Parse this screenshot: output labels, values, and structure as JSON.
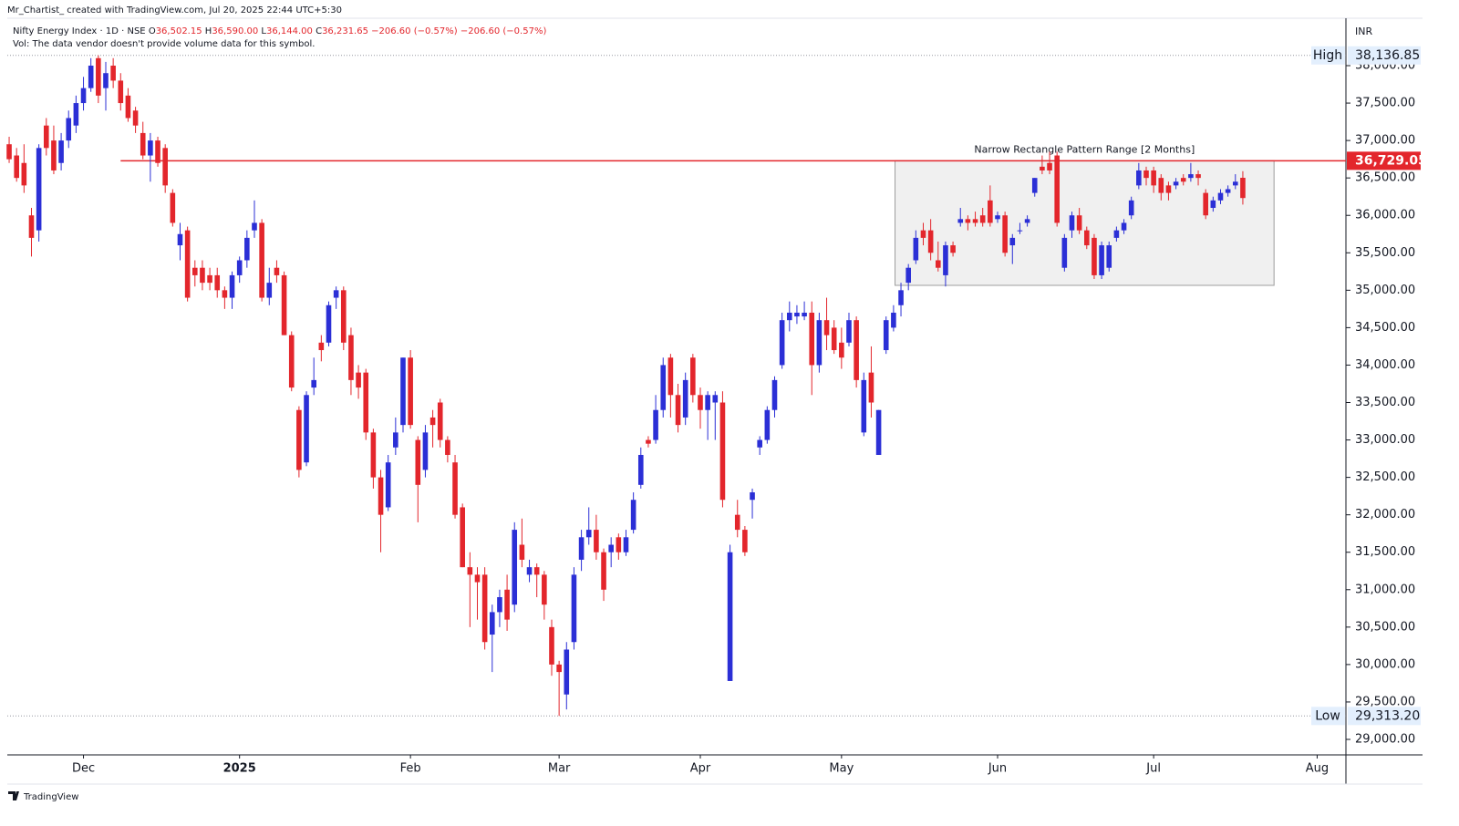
{
  "header": {
    "credit": "Mr_Chartist_ created with TradingView.com, Jul 20, 2025 22:44 UTC+5:30",
    "symbol": "Nifty Energy Index · 1D · NSE",
    "quote": [
      "O",
      "36,502.15",
      "H",
      "36,590.00",
      "L",
      "36,144.00",
      "C",
      "36,231.65",
      "−206.60 (−0.57%)",
      "−206.60 (−0.57%)"
    ],
    "volume_note": "Vol: The data vendor doesn't provide volume data for this symbol."
  },
  "footer": {
    "brand": "TradingView"
  },
  "chart_data": {
    "type": "candlestick",
    "currency": "INR",
    "up_color": "#2b2fd6",
    "down_color": "#e3262c",
    "xlim": [
      -0.25,
      179.75
    ],
    "xticks": [
      {
        "value": 10,
        "label": "Dec"
      },
      {
        "value": 31,
        "label": "2025"
      },
      {
        "value": 54,
        "label": "Feb"
      },
      {
        "value": 74,
        "label": "Mar"
      },
      {
        "value": 93,
        "label": "Apr"
      },
      {
        "value": 112,
        "label": "May"
      },
      {
        "value": 133,
        "label": "Jun"
      },
      {
        "value": 154,
        "label": "Jul"
      },
      {
        "value": 176,
        "label": "Aug"
      }
    ],
    "ylim": [
      28793,
      38268
    ],
    "yticks": [
      {
        "value": 29000,
        "label": "29,000.00"
      },
      {
        "value": 29500,
        "label": "29,500.00"
      },
      {
        "value": 30000,
        "label": "30,000.00"
      },
      {
        "value": 30500,
        "label": "30,500.00"
      },
      {
        "value": 31000,
        "label": "31,000.00"
      },
      {
        "value": 31500,
        "label": "31,500.00"
      },
      {
        "value": 32000,
        "label": "32,000.00"
      },
      {
        "value": 32500,
        "label": "32,500.00"
      },
      {
        "value": 33000,
        "label": "33,000.00"
      },
      {
        "value": 33500,
        "label": "33,500.00"
      },
      {
        "value": 34000,
        "label": "34,000.00"
      },
      {
        "value": 34500,
        "label": "34,500.00"
      },
      {
        "value": 35000,
        "label": "35,000.00"
      },
      {
        "value": 35500,
        "label": "35,500.00"
      },
      {
        "value": 36000,
        "label": "36,000.00"
      },
      {
        "value": 36500,
        "label": "36,500.00"
      },
      {
        "value": 37000,
        "label": "37,000.00"
      },
      {
        "value": 37500,
        "label": "37,500.00"
      },
      {
        "value": 38000,
        "label": "38,000.00"
      }
    ],
    "high": {
      "label": "High",
      "value": 38136.85,
      "value_label": "38,136.85"
    },
    "low": {
      "label": "Low",
      "value": 29313.2,
      "value_label": "29,313.20"
    },
    "hline": {
      "value": 36729.05,
      "value_label": "36,729.05",
      "start": 15,
      "color": "#e3262c"
    },
    "box": {
      "x": [
        119.2,
        170.2
      ],
      "y": [
        35065,
        36729.05
      ],
      "label": "Narrow Rectangle Pattern Range [2 Months]"
    },
    "ohlc": [
      [
        36950,
        37050,
        36700,
        36750
      ],
      [
        36800,
        36900,
        36450,
        36500
      ],
      [
        36700,
        36950,
        36300,
        36400
      ],
      [
        36000,
        36100,
        35450,
        35700
      ],
      [
        35800,
        36950,
        35650,
        36900
      ],
      [
        37200,
        37300,
        36800,
        36900
      ],
      [
        37000,
        37200,
        36550,
        36600
      ],
      [
        36700,
        37100,
        36600,
        37000
      ],
      [
        37000,
        37400,
        36900,
        37300
      ],
      [
        37200,
        37600,
        37100,
        37500
      ],
      [
        37500,
        37850,
        37400,
        37700
      ],
      [
        37700,
        38100,
        37650,
        38000
      ],
      [
        38100,
        38136.85,
        37500,
        37600
      ],
      [
        37700,
        38050,
        37400,
        37900
      ],
      [
        38000,
        38100,
        37700,
        37800
      ],
      [
        37800,
        37900,
        37400,
        37500
      ],
      [
        37600,
        37700,
        37250,
        37300
      ],
      [
        37400,
        37450,
        37100,
        37200
      ],
      [
        37100,
        37250,
        36750,
        36800
      ],
      [
        36800,
        37100,
        36450,
        37000
      ],
      [
        37000,
        37050,
        36650,
        36700
      ],
      [
        36900,
        36950,
        36300,
        36400
      ],
      [
        36300,
        36350,
        35850,
        35900
      ],
      [
        35600,
        35900,
        35400,
        35750
      ],
      [
        35800,
        35850,
        34850,
        34900
      ],
      [
        35300,
        35400,
        35050,
        35200
      ],
      [
        35300,
        35400,
        35000,
        35100
      ],
      [
        35200,
        35300,
        35000,
        35100
      ],
      [
        35200,
        35300,
        34900,
        35000
      ],
      [
        35000,
        35050,
        34750,
        34900
      ],
      [
        34900,
        35250,
        34750,
        35200
      ],
      [
        35200,
        35450,
        35100,
        35400
      ],
      [
        35400,
        35800,
        35300,
        35700
      ],
      [
        35800,
        36200,
        35700,
        35900
      ],
      [
        35900,
        35950,
        34850,
        34900
      ],
      [
        34900,
        35300,
        34800,
        35100
      ],
      [
        35300,
        35400,
        35100,
        35200
      ],
      [
        35200,
        35250,
        34400,
        34400
      ],
      [
        34400,
        34450,
        33650,
        33700
      ],
      [
        33400,
        33450,
        32500,
        32600
      ],
      [
        32700,
        33650,
        32650,
        33600
      ],
      [
        33700,
        34100,
        33600,
        33800
      ],
      [
        34300,
        34400,
        34050,
        34200
      ],
      [
        34300,
        34850,
        34250,
        34800
      ],
      [
        34900,
        35050,
        34750,
        35000
      ],
      [
        35000,
        35050,
        34200,
        34300
      ],
      [
        34400,
        34500,
        33600,
        33800
      ],
      [
        33900,
        34000,
        33550,
        33700
      ],
      [
        33900,
        33950,
        33000,
        33100
      ],
      [
        33100,
        33150,
        32350,
        32500
      ],
      [
        32500,
        32600,
        31500,
        32000
      ],
      [
        32100,
        32800,
        32050,
        32700
      ],
      [
        32900,
        33300,
        32800,
        33100
      ],
      [
        33200,
        34100,
        33100,
        34100
      ],
      [
        34100,
        34200,
        33150,
        33200
      ],
      [
        33000,
        33050,
        31900,
        32400
      ],
      [
        32600,
        33200,
        32500,
        33100
      ],
      [
        33300,
        33400,
        32900,
        33200
      ],
      [
        33500,
        33550,
        32900,
        33000
      ],
      [
        33000,
        33050,
        32700,
        32800
      ],
      [
        32700,
        32800,
        31950,
        32000
      ],
      [
        32100,
        32150,
        31300,
        31300
      ],
      [
        31300,
        31500,
        30500,
        31200
      ],
      [
        31200,
        31300,
        30600,
        31100
      ],
      [
        31200,
        31300,
        30200,
        30300
      ],
      [
        30400,
        30800,
        29900,
        30700
      ],
      [
        30700,
        31000,
        30500,
        30900
      ],
      [
        31000,
        31200,
        30450,
        30600
      ],
      [
        30800,
        31900,
        30700,
        31800
      ],
      [
        31600,
        31950,
        31300,
        31400
      ],
      [
        31200,
        31400,
        31100,
        31300
      ],
      [
        31300,
        31350,
        30900,
        31200
      ],
      [
        31200,
        31250,
        30600,
        30800
      ],
      [
        30500,
        30600,
        29850,
        30000
      ],
      [
        30000,
        30050,
        29313.2,
        29900
      ],
      [
        29600,
        30300,
        29400,
        30200
      ],
      [
        30300,
        31300,
        30200,
        31200
      ],
      [
        31400,
        31800,
        31250,
        31700
      ],
      [
        31700,
        32100,
        31600,
        31800
      ],
      [
        31800,
        32000,
        31400,
        31500
      ],
      [
        31500,
        31550,
        30850,
        31000
      ],
      [
        31500,
        31700,
        31300,
        31600
      ],
      [
        31700,
        31750,
        31400,
        31500
      ],
      [
        31500,
        31800,
        31450,
        31700
      ],
      [
        31800,
        32300,
        31750,
        32200
      ],
      [
        32400,
        32900,
        32350,
        32800
      ],
      [
        33000,
        33050,
        32900,
        32950
      ],
      [
        33000,
        33600,
        32950,
        33400
      ],
      [
        33400,
        34100,
        33300,
        34000
      ],
      [
        34100,
        34150,
        33300,
        33600
      ],
      [
        33600,
        33750,
        33100,
        33200
      ],
      [
        33300,
        33900,
        33200,
        33800
      ],
      [
        34100,
        34150,
        33500,
        33600
      ],
      [
        33600,
        33700,
        33150,
        33400
      ],
      [
        33400,
        33650,
        33000,
        33600
      ],
      [
        33500,
        33650,
        33000,
        33600
      ],
      [
        33500,
        33650,
        32100,
        32200
      ],
      [
        29780,
        31600,
        29780,
        31500
      ],
      [
        32000,
        32200,
        31700,
        31800
      ],
      [
        31800,
        31850,
        31450,
        31500
      ],
      [
        32200,
        32350,
        31950,
        32300
      ],
      [
        32900,
        33050,
        32800,
        33000
      ],
      [
        33000,
        33450,
        32950,
        33400
      ],
      [
        33400,
        33850,
        33300,
        33800
      ],
      [
        34000,
        34700,
        33950,
        34600
      ],
      [
        34600,
        34850,
        34450,
        34700
      ],
      [
        34650,
        34800,
        34550,
        34700
      ],
      [
        34650,
        34850,
        34600,
        34700
      ],
      [
        34700,
        34850,
        33600,
        34000
      ],
      [
        34000,
        34700,
        33900,
        34600
      ],
      [
        34600,
        34900,
        34200,
        34400
      ],
      [
        34500,
        34600,
        34150,
        34200
      ],
      [
        34300,
        34500,
        33950,
        34100
      ],
      [
        34300,
        34700,
        34250,
        34600
      ],
      [
        34600,
        34650,
        33700,
        33800
      ],
      [
        33100,
        33900,
        33050,
        33800
      ],
      [
        33900,
        34250,
        33300,
        33500
      ],
      [
        32800,
        33400,
        32800,
        33400
      ],
      [
        34200,
        34650,
        34150,
        34600
      ],
      [
        34500,
        34800,
        34450,
        34700
      ],
      [
        34800,
        35100,
        34650,
        35000
      ],
      [
        35100,
        35350,
        35000,
        35300
      ],
      [
        35400,
        35800,
        35350,
        35700
      ],
      [
        35800,
        35900,
        35600,
        35700
      ],
      [
        35800,
        35950,
        35400,
        35500
      ],
      [
        35400,
        35650,
        35250,
        35300
      ],
      [
        35200,
        35650,
        35050,
        35600
      ],
      [
        35600,
        35650,
        35450,
        35500
      ],
      [
        35900,
        36100,
        35850,
        35950
      ],
      [
        35950,
        36000,
        35800,
        35900
      ],
      [
        35950,
        36050,
        35850,
        35900
      ],
      [
        36000,
        36100,
        35850,
        35900
      ],
      [
        36200,
        36400,
        35850,
        35900
      ],
      [
        35950,
        36050,
        35900,
        36000
      ],
      [
        36000,
        36050,
        35450,
        35500
      ],
      [
        35600,
        35750,
        35350,
        35700
      ],
      [
        35800,
        35900,
        35750,
        35800
      ],
      [
        35900,
        36000,
        35850,
        35950
      ],
      [
        36300,
        36500,
        36250,
        36500
      ],
      [
        36650,
        36800,
        36550,
        36600
      ],
      [
        36700,
        36850,
        36550,
        36600
      ],
      [
        36800,
        36850,
        35850,
        35900
      ],
      [
        35300,
        35750,
        35250,
        35700
      ],
      [
        35800,
        36050,
        35700,
        36000
      ],
      [
        36000,
        36100,
        35750,
        35800
      ],
      [
        35800,
        35850,
        35550,
        35600
      ],
      [
        35700,
        35750,
        35150,
        35200
      ],
      [
        35200,
        35650,
        35150,
        35600
      ],
      [
        35300,
        35650,
        35250,
        35600
      ],
      [
        35700,
        35850,
        35650,
        35800
      ],
      [
        35800,
        35950,
        35750,
        35900
      ],
      [
        36000,
        36250,
        35950,
        36200
      ],
      [
        36400,
        36700,
        36350,
        36600
      ],
      [
        36600,
        36650,
        36400,
        36500
      ],
      [
        36600,
        36650,
        36300,
        36400
      ],
      [
        36500,
        36550,
        36200,
        36300
      ],
      [
        36400,
        36450,
        36200,
        36300
      ],
      [
        36400,
        36500,
        36350,
        36450
      ],
      [
        36500,
        36550,
        36400,
        36450
      ],
      [
        36500,
        36700,
        36450,
        36550
      ],
      [
        36550,
        36600,
        36400,
        36500
      ],
      [
        36300,
        36350,
        35950,
        36000
      ],
      [
        36100,
        36250,
        36050,
        36200
      ],
      [
        36200,
        36350,
        36150,
        36300
      ],
      [
        36300,
        36400,
        36250,
        36350
      ],
      [
        36400,
        36550,
        36350,
        36450
      ],
      [
        36502.15,
        36590,
        36144,
        36231.65
      ]
    ]
  }
}
